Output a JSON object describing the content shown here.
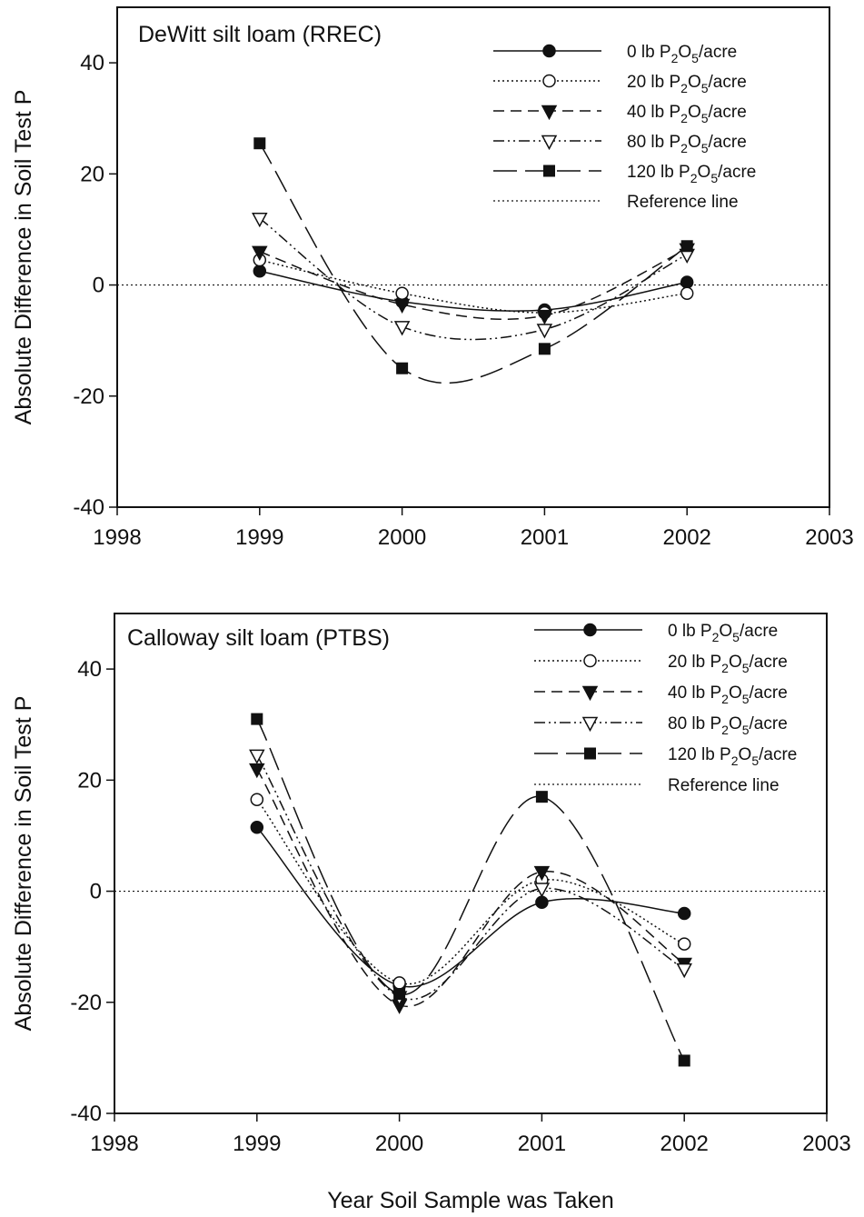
{
  "figure": {
    "xlabel": "Year Soil Sample was Taken"
  },
  "chart_data": [
    {
      "type": "line",
      "title": "DeWitt silt loam (RREC)",
      "ylabel": "Absolute Difference in Soil Test P",
      "xlim": [
        1998,
        2003
      ],
      "ylim": [
        -40,
        50
      ],
      "xticks": [
        "1998",
        "1999",
        "2000",
        "2001",
        "2002",
        "2003"
      ],
      "yticks": [
        "-40",
        "-20",
        "0",
        "20",
        "40"
      ],
      "x": [
        1999,
        2000,
        2001,
        2002
      ],
      "grid": false,
      "legend_position": "top-right",
      "series": [
        {
          "name": "0 lb P2O5/acre",
          "name_parts": [
            "0 lb P",
            "2",
            "O",
            "5",
            "/acre"
          ],
          "values": [
            2.5,
            -3,
            -4.5,
            0.5
          ],
          "marker": "filled-circle",
          "dash": "solid"
        },
        {
          "name": "20 lb P2O5/acre",
          "name_parts": [
            "20 lb P",
            "2",
            "O",
            "5",
            "/acre"
          ],
          "values": [
            4.5,
            -1.5,
            -5,
            -1.5
          ],
          "marker": "open-circle",
          "dash": "dotted"
        },
        {
          "name": "40 lb P2O5/acre",
          "name_parts": [
            "40 lb P",
            "2",
            "O",
            "5",
            "/acre"
          ],
          "values": [
            6,
            -3.5,
            -5.5,
            6.5
          ],
          "marker": "filled-triangle-down",
          "dash": "short-dash"
        },
        {
          "name": "80 lb P2O5/acre",
          "name_parts": [
            "80 lb P",
            "2",
            "O",
            "5",
            "/acre"
          ],
          "values": [
            12,
            -7.5,
            -8,
            5.5
          ],
          "marker": "open-triangle-down",
          "dash": "dash-dot-dot"
        },
        {
          "name": "120 lb P2O5/acre",
          "name_parts": [
            "120 lb P",
            "2",
            "O",
            "5",
            "/acre"
          ],
          "values": [
            25.5,
            -15,
            -11.5,
            7
          ],
          "marker": "filled-square",
          "dash": "long-dash"
        }
      ],
      "reference_line": {
        "name": "Reference line",
        "y": 0,
        "dash": "dotted"
      }
    },
    {
      "type": "line",
      "title": "Calloway silt loam (PTBS)",
      "ylabel": "Absolute Difference in Soil Test P",
      "xlim": [
        1998,
        2003
      ],
      "ylim": [
        -40,
        50
      ],
      "xticks": [
        "1998",
        "1999",
        "2000",
        "2001",
        "2002",
        "2003"
      ],
      "yticks": [
        "-40",
        "-20",
        "0",
        "20",
        "40"
      ],
      "x": [
        1999,
        2000,
        2001,
        2002
      ],
      "grid": false,
      "legend_position": "top-right",
      "series": [
        {
          "name": "0 lb P2O5/acre",
          "name_parts": [
            "0 lb P",
            "2",
            "O",
            "5",
            "/acre"
          ],
          "values": [
            11.5,
            -17,
            -2,
            -4
          ],
          "marker": "filled-circle",
          "dash": "solid"
        },
        {
          "name": "20 lb P2O5/acre",
          "name_parts": [
            "20 lb P",
            "2",
            "O",
            "5",
            "/acre"
          ],
          "values": [
            16.5,
            -16.5,
            2,
            -9.5
          ],
          "marker": "open-circle",
          "dash": "dotted"
        },
        {
          "name": "40 lb P2O5/acre",
          "name_parts": [
            "40 lb P",
            "2",
            "O",
            "5",
            "/acre"
          ],
          "values": [
            22,
            -20.5,
            3.5,
            -13
          ],
          "marker": "filled-triangle-down",
          "dash": "short-dash"
        },
        {
          "name": "80 lb P2O5/acre",
          "name_parts": [
            "80 lb P",
            "2",
            "O",
            "5",
            "/acre"
          ],
          "values": [
            24.5,
            -19,
            0.5,
            -14
          ],
          "marker": "open-triangle-down",
          "dash": "dash-dot-dot"
        },
        {
          "name": "120 lb P2O5/acre",
          "name_parts": [
            "120 lb P",
            "2",
            "O",
            "5",
            "/acre"
          ],
          "values": [
            31,
            -18.5,
            17,
            -30.5
          ],
          "marker": "filled-square",
          "dash": "long-dash"
        }
      ],
      "reference_line": {
        "name": "Reference line",
        "y": 0,
        "dash": "dotted"
      }
    }
  ]
}
